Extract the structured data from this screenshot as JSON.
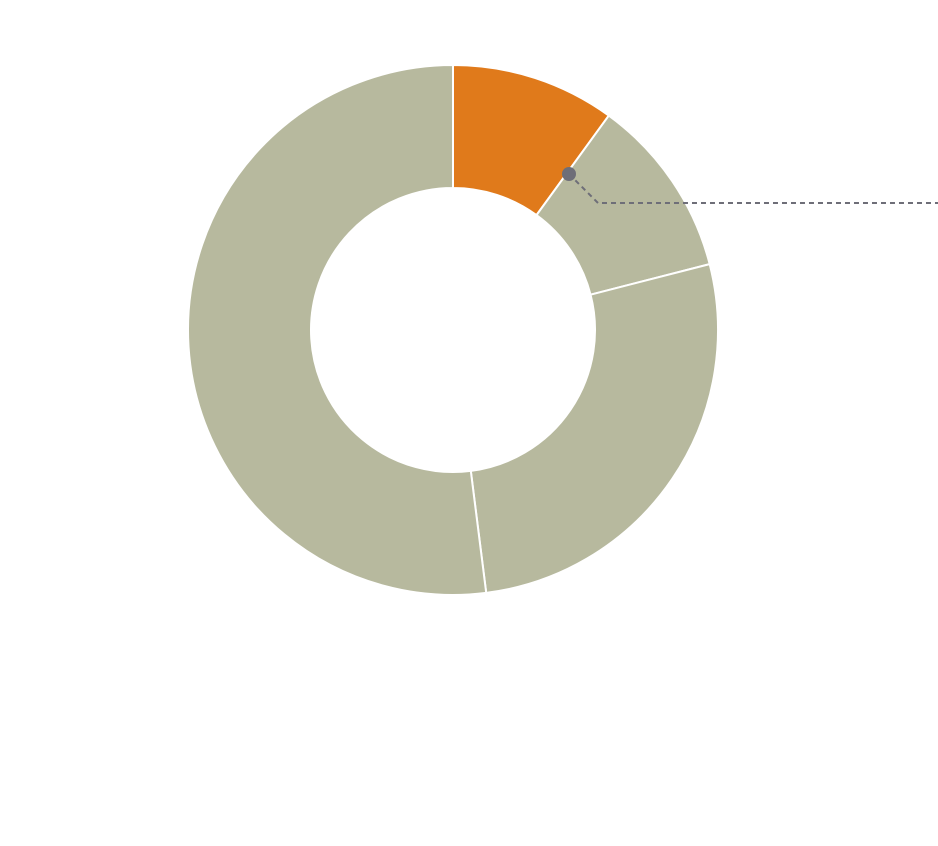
{
  "chart_data": {
    "type": "pie",
    "donut": true,
    "values": [
      10,
      11,
      27,
      52
    ],
    "colors": [
      "#e07a1b",
      "#b7b99e",
      "#b7b99e",
      "#b7b99e"
    ]
  }
}
